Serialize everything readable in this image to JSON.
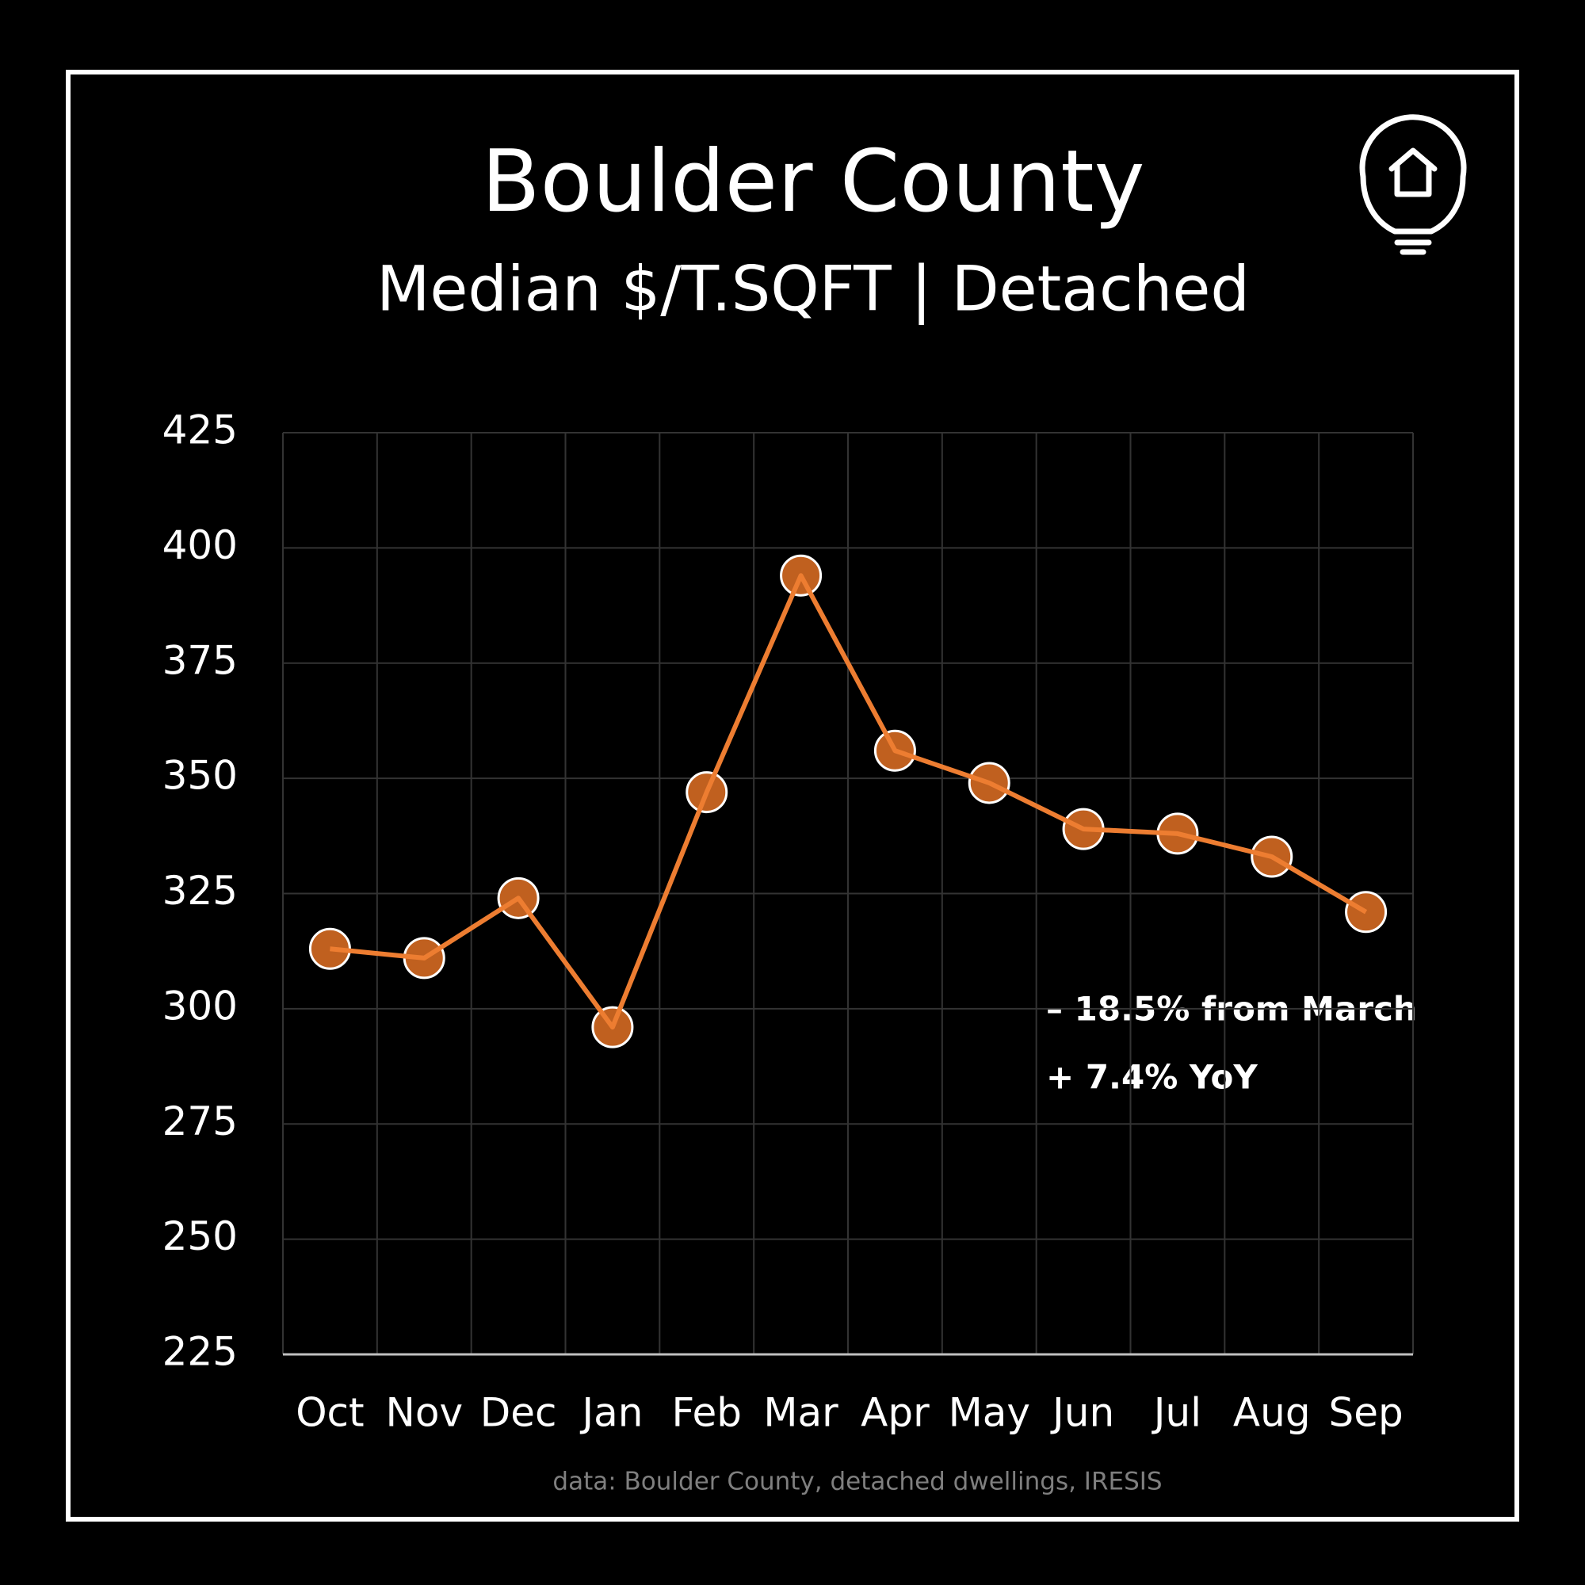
{
  "chart_data": {
    "type": "line",
    "title": "Boulder County",
    "subtitle": "Median $/T.SQFT  | Detached",
    "categories": [
      "Oct",
      "Nov",
      "Dec",
      "Jan",
      "Feb",
      "Mar",
      "Apr",
      "May",
      "Jun",
      "Jul",
      "Aug",
      "Sep"
    ],
    "series": [
      {
        "name": "Median $/T.SQFT",
        "color": "#ed7d31",
        "marker_color": "#c0601f",
        "values": [
          313,
          311,
          324,
          296,
          347,
          394,
          356,
          349,
          339,
          338,
          333,
          321
        ]
      }
    ],
    "ylim": [
      225,
      425
    ],
    "yticks": [
      225,
      250,
      275,
      300,
      325,
      350,
      375,
      400,
      425
    ],
    "grid": true,
    "annotations": [
      "– 18.5% from March",
      "+ 7.4% YoY"
    ],
    "source": "data: Boulder County, detached dwellings, IRESIS"
  }
}
